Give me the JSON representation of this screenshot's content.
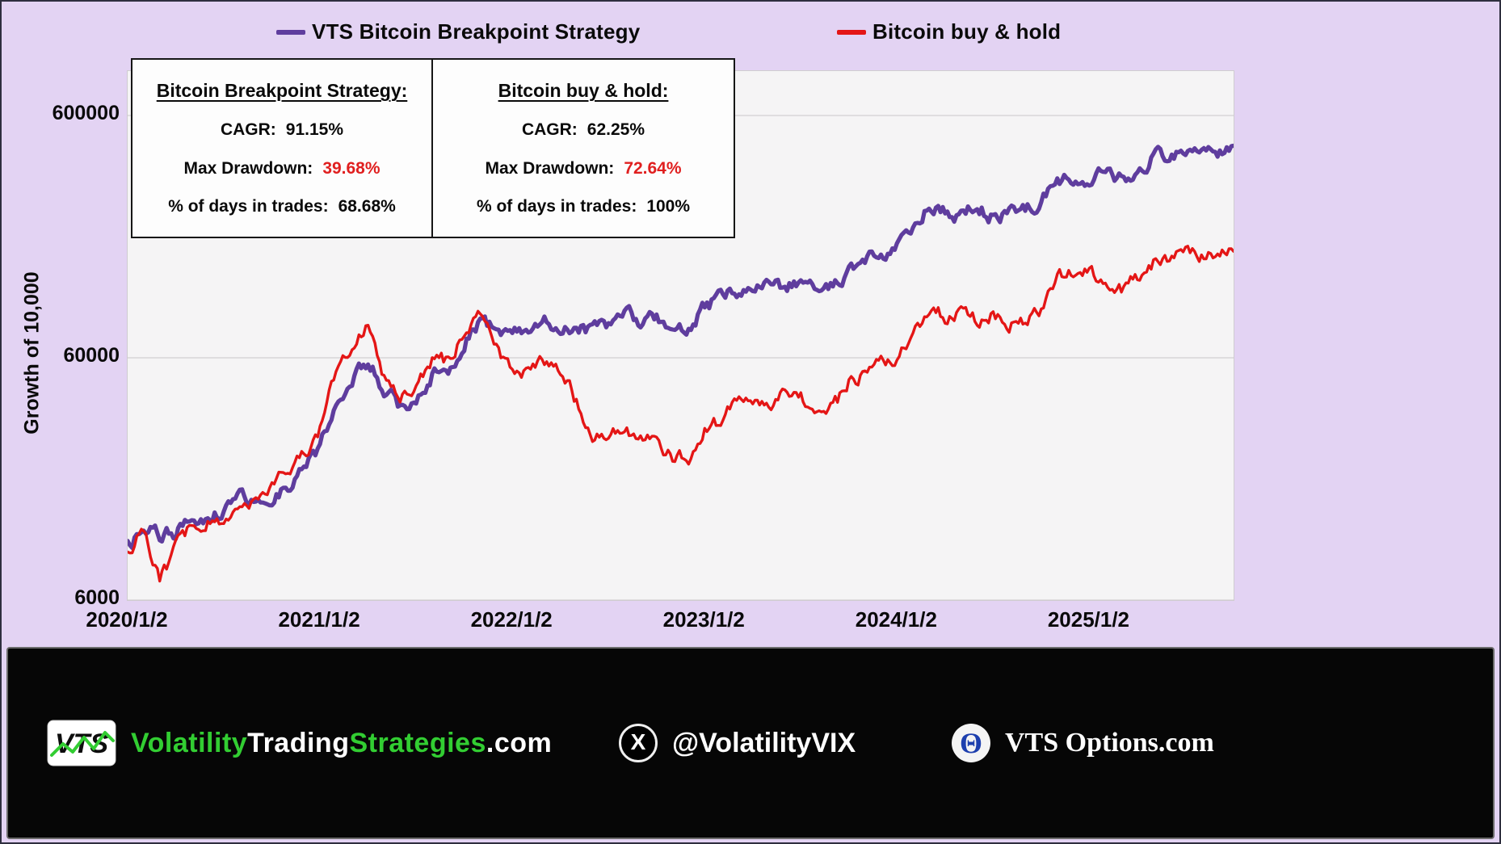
{
  "legend": {
    "items": [
      {
        "label": "VTS Bitcoin Breakpoint Strategy",
        "color": "#5f3d9e"
      },
      {
        "label": "Bitcoin buy & hold",
        "color": "#e41616"
      }
    ]
  },
  "stats": [
    {
      "title": "Bitcoin Breakpoint Strategy:",
      "rows": [
        {
          "label": "CAGR:",
          "value": "91.15%",
          "value_color": "#0a0a0a"
        },
        {
          "label": "Max Drawdown:",
          "value": "39.68%",
          "value_color": "#e01f1f"
        },
        {
          "label": "% of days in trades:",
          "value": "68.68%",
          "value_color": "#0a0a0a"
        }
      ]
    },
    {
      "title": "Bitcoin buy & hold:",
      "rows": [
        {
          "label": "CAGR:",
          "value": "62.25%",
          "value_color": "#0a0a0a"
        },
        {
          "label": "Max Drawdown:",
          "value": "72.64%",
          "value_color": "#e01f1f"
        },
        {
          "label": "% of days in trades:",
          "value": "100%",
          "value_color": "#0a0a0a"
        }
      ]
    }
  ],
  "chart_data": {
    "type": "line",
    "title": "",
    "xlabel": "",
    "ylabel": "Growth of 10,000",
    "y_scale": "log",
    "ylim": [
      6000,
      915000
    ],
    "y_ticks": [
      6000,
      60000,
      600000
    ],
    "x_ticks": [
      "2020/1/2",
      "2021/1/2",
      "2022/1/2",
      "2023/1/2",
      "2024/1/2",
      "2025/1/2"
    ],
    "grid": true,
    "legend_position": "top",
    "x": [
      "2020-01",
      "2020-02",
      "2020-03",
      "2020-04",
      "2020-05",
      "2020-06",
      "2020-07",
      "2020-08",
      "2020-09",
      "2020-10",
      "2020-11",
      "2020-12",
      "2021-01",
      "2021-02",
      "2021-03",
      "2021-04",
      "2021-05",
      "2021-06",
      "2021-07",
      "2021-08",
      "2021-09",
      "2021-10",
      "2021-11",
      "2021-12",
      "2022-01",
      "2022-02",
      "2022-03",
      "2022-04",
      "2022-05",
      "2022-06",
      "2022-07",
      "2022-08",
      "2022-09",
      "2022-10",
      "2022-11",
      "2022-12",
      "2023-01",
      "2023-02",
      "2023-03",
      "2023-04",
      "2023-05",
      "2023-06",
      "2023-07",
      "2023-08",
      "2023-09",
      "2023-10",
      "2023-11",
      "2023-12",
      "2024-01",
      "2024-02",
      "2024-03",
      "2024-04",
      "2024-05",
      "2024-06",
      "2024-07",
      "2024-08",
      "2024-09",
      "2024-10",
      "2024-11",
      "2024-12",
      "2025-01",
      "2025-02",
      "2025-03",
      "2025-04",
      "2025-05",
      "2025-06",
      "2025-07",
      "2025-08",
      "2025-09",
      "2025-10"
    ],
    "series": [
      {
        "name": "VTS Bitcoin Breakpoint Strategy",
        "color": "#5f3d9e",
        "values": [
          10000,
          11800,
          11000,
          11500,
          13000,
          13500,
          14000,
          16500,
          15000,
          16000,
          18000,
          21000,
          26000,
          40000,
          50000,
          58000,
          44000,
          38000,
          40000,
          52000,
          55000,
          68000,
          86000,
          78000,
          76000,
          79000,
          86000,
          82000,
          79000,
          80000,
          83000,
          91000,
          86000,
          86000,
          76000,
          79000,
          96000,
          108000,
          112000,
          120000,
          116000,
          120000,
          126000,
          115000,
          120000,
          136000,
          150000,
          162000,
          172000,
          205000,
          255000,
          240000,
          232000,
          250000,
          228000,
          236000,
          242000,
          262000,
          320000,
          342000,
          332000,
          342000,
          330000,
          362000,
          400000,
          420000,
          432000,
          440000,
          432000,
          450000
        ]
      },
      {
        "name": "Bitcoin buy & hold",
        "color": "#e41616",
        "values": [
          10000,
          11500,
          7200,
          9800,
          12200,
          12600,
          12400,
          15800,
          14500,
          17800,
          21000,
          24000,
          30000,
          52000,
          62000,
          84000,
          50000,
          43000,
          44000,
          60000,
          58000,
          78000,
          88000,
          64000,
          52000,
          54000,
          58000,
          55000,
          40000,
          27500,
          29000,
          30000,
          27000,
          28000,
          23000,
          23500,
          31000,
          33000,
          39000,
          41000,
          38000,
          42000,
          41000,
          36000,
          37000,
          47000,
          52000,
          59000,
          60000,
          73000,
          98000,
          89000,
          94000,
          85000,
          91000,
          82000,
          86000,
          96000,
          130000,
          134000,
          142000,
          121000,
          116000,
          131000,
          150000,
          151000,
          164000,
          160000,
          155000,
          165000
        ]
      }
    ]
  },
  "footer": {
    "logo_text": "VTS",
    "site_parts": [
      {
        "text": "Volatility",
        "color": "#32cd32"
      },
      {
        "text": "Trading",
        "color": "#ffffff"
      },
      {
        "text": "Strategies",
        "color": "#32cd32"
      },
      {
        "text": ".com",
        "color": "#ffffff"
      }
    ],
    "twitter_handle": "@VolatilityVIX",
    "options_site": "VTS Options.com",
    "icons": {
      "x_logo": "X",
      "theta": "Θ"
    }
  }
}
